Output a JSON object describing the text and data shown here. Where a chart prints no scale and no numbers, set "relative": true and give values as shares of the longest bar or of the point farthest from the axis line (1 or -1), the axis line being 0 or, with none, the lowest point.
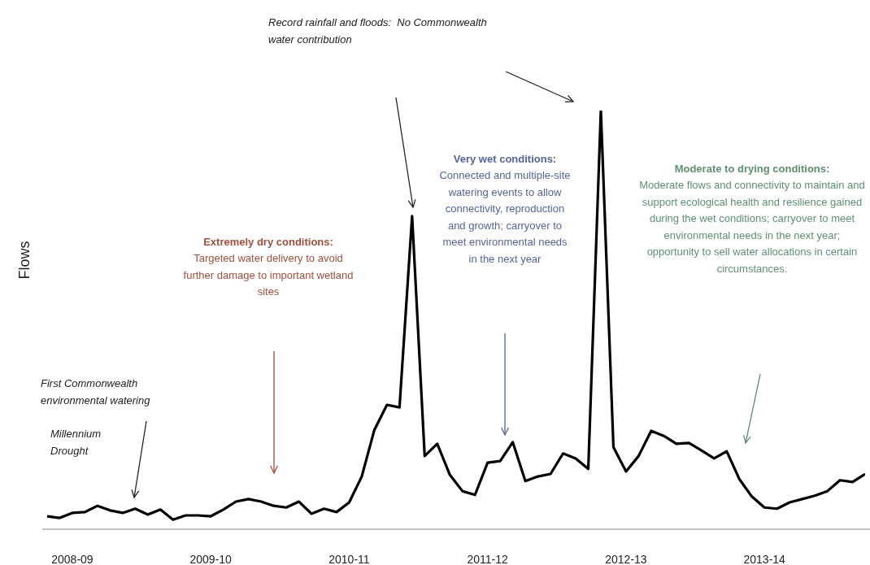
{
  "chart_data": {
    "type": "line",
    "relative": true,
    "ylabel": "Flows",
    "categories": [
      null,
      null,
      "2008-09",
      null,
      null,
      null,
      null,
      null,
      null,
      null,
      null,
      null,
      null,
      "2009-10",
      null,
      null,
      null,
      null,
      null,
      null,
      null,
      null,
      null,
      null,
      "2010-11",
      null,
      null,
      null,
      null,
      null,
      null,
      null,
      null,
      null,
      null,
      "2011-12",
      null,
      null,
      null,
      null,
      null,
      null,
      null,
      null,
      null,
      null,
      "2012-13",
      null,
      null,
      null,
      null,
      null,
      null,
      null,
      null,
      null,
      null,
      "2013-14",
      null,
      null,
      null,
      null,
      null,
      null,
      null,
      null
    ],
    "series": [
      {
        "color": "#000000",
        "values": [
          0.031,
          0.027,
          0.039,
          0.041,
          0.056,
          0.045,
          0.039,
          0.049,
          0.035,
          0.047,
          0.023,
          0.033,
          0.033,
          0.031,
          0.047,
          0.066,
          0.072,
          0.066,
          0.056,
          0.052,
          0.066,
          0.037,
          0.049,
          0.041,
          0.064,
          0.126,
          0.237,
          0.297,
          0.291,
          0.748,
          0.175,
          0.204,
          0.13,
          0.091,
          0.082,
          0.159,
          0.163,
          0.208,
          0.115,
          0.126,
          0.132,
          0.181,
          0.169,
          0.144,
          1,
          0.196,
          0.138,
          0.175,
          0.235,
          0.223,
          0.204,
          0.206,
          0.188,
          0.169,
          0.186,
          0.12,
          0.078,
          0.052,
          0.049,
          0.064,
          0.072,
          0.08,
          0.091,
          0.117,
          0.113,
          0.132
        ]
      }
    ],
    "annotations": [
      "Record rainfall and floods:  No Commonwealth water contribution",
      "First Commonwealth environmental watering",
      "Millennium Drought",
      "Extremely dry conditions:",
      "Targeted water delivery to avoid further damage to important wetland sites",
      "Very wet conditions:",
      "Connected and multiple-site watering events to allow connectivity, reproduction and growth; carryover to meet environmental needs in the next year",
      "Moderate to drying conditions:",
      "Moderate flows and connectivity to maintain and support ecological health and resilience gained during the wet conditions; carryover to meet environmental needs in the next year; opportunity to sell water allocations in certain circumstances."
    ]
  }
}
